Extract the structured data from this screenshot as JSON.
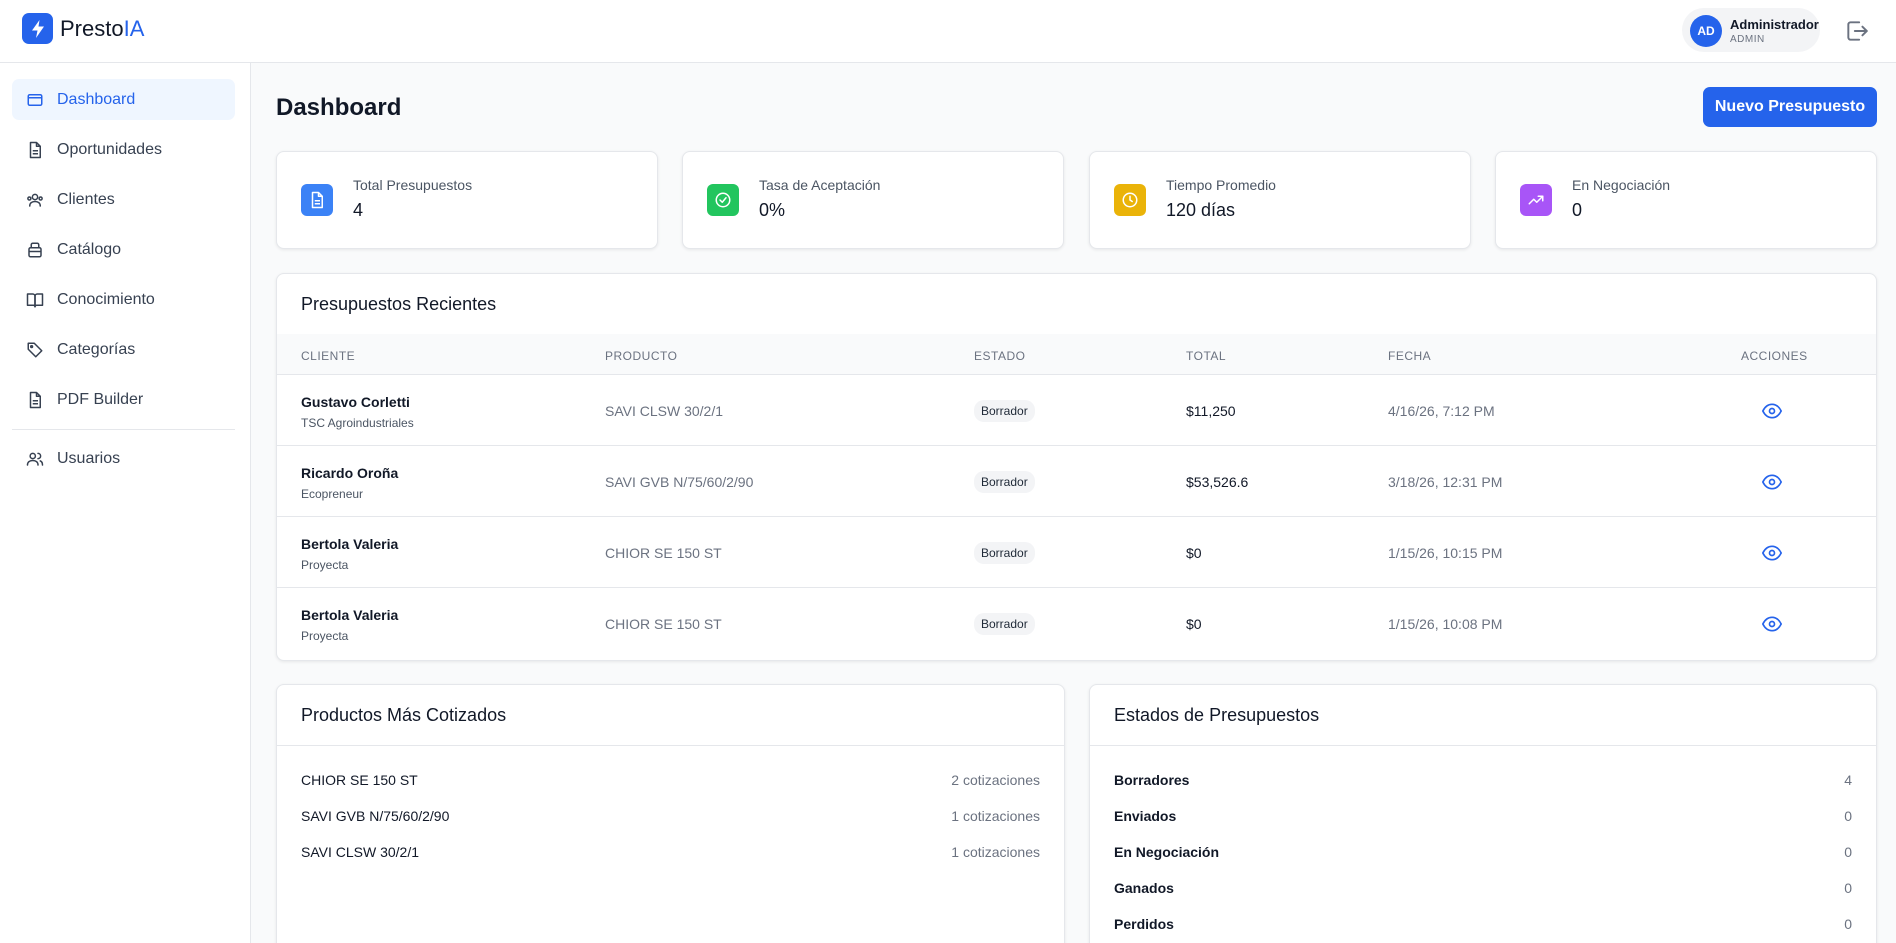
{
  "brand": {
    "name_main": "Presto",
    "name_accent": "IA",
    "accent_color": "#2563eb"
  },
  "user": {
    "initials": "AD",
    "name": "Administrador",
    "role": "ADMIN"
  },
  "sidebar": {
    "items": [
      {
        "label": "Dashboard",
        "icon": "folder-icon",
        "active": true
      },
      {
        "label": "Oportunidades",
        "icon": "document-icon"
      },
      {
        "label": "Clientes",
        "icon": "users-icon"
      },
      {
        "label": "Catálogo",
        "icon": "package-icon"
      },
      {
        "label": "Conocimiento",
        "icon": "book-icon"
      },
      {
        "label": "Categorías",
        "icon": "tag-icon"
      },
      {
        "label": "PDF Builder",
        "icon": "document-icon"
      },
      {
        "label": "Usuarios",
        "icon": "users-icon"
      }
    ]
  },
  "header": {
    "title": "Dashboard",
    "new_button": "Nuevo Presupuesto"
  },
  "stats": [
    {
      "label": "Total Presupuestos",
      "value": "4",
      "icon": "document-icon",
      "color": "#3b82f6"
    },
    {
      "label": "Tasa de Aceptación",
      "value": "0%",
      "icon": "check-circle-icon",
      "color": "#22c55e"
    },
    {
      "label": "Tiempo Promedio",
      "value": "120 días",
      "icon": "clock-icon",
      "color": "#eab308"
    },
    {
      "label": "En Negociación",
      "value": "0",
      "icon": "trending-up-icon",
      "color": "#a855f7"
    }
  ],
  "recent": {
    "title": "Presupuestos Recientes",
    "columns": [
      "CLIENTE",
      "PRODUCTO",
      "ESTADO",
      "TOTAL",
      "FECHA",
      "ACCIONES"
    ],
    "rows": [
      {
        "client": "Gustavo Corletti",
        "company": "TSC Agroindustriales",
        "product": "SAVI CLSW 30/2/1",
        "status": "Borrador",
        "total": "$11,250",
        "date": "4/16/26, 7:12 PM"
      },
      {
        "client": "Ricardo Oroña",
        "company": "Ecopreneur",
        "product": "SAVI GVB N/75/60/2/90",
        "status": "Borrador",
        "total": "$53,526.6",
        "date": "3/18/26, 12:31 PM"
      },
      {
        "client": "Bertola Valeria",
        "company": "Proyecta",
        "product": "CHIOR SE 150 ST",
        "status": "Borrador",
        "total": "$0",
        "date": "1/15/26, 10:15 PM"
      },
      {
        "client": "Bertola Valeria",
        "company": "Proyecta",
        "product": "CHIOR SE 150 ST",
        "status": "Borrador",
        "total": "$0",
        "date": "1/15/26, 10:08 PM"
      }
    ]
  },
  "top_products": {
    "title": "Productos Más Cotizados",
    "items": [
      {
        "name": "CHIOR SE 150 ST",
        "count": "2 cotizaciones"
      },
      {
        "name": "SAVI GVB N/75/60/2/90",
        "count": "1 cotizaciones"
      },
      {
        "name": "SAVI CLSW 30/2/1",
        "count": "1 cotizaciones"
      }
    ]
  },
  "status_summary": {
    "title": "Estados de Presupuestos",
    "items": [
      {
        "name": "Borradores",
        "count": "4"
      },
      {
        "name": "Enviados",
        "count": "0"
      },
      {
        "name": "En Negociación",
        "count": "0"
      },
      {
        "name": "Ganados",
        "count": "0"
      },
      {
        "name": "Perdidos",
        "count": "0"
      }
    ]
  }
}
